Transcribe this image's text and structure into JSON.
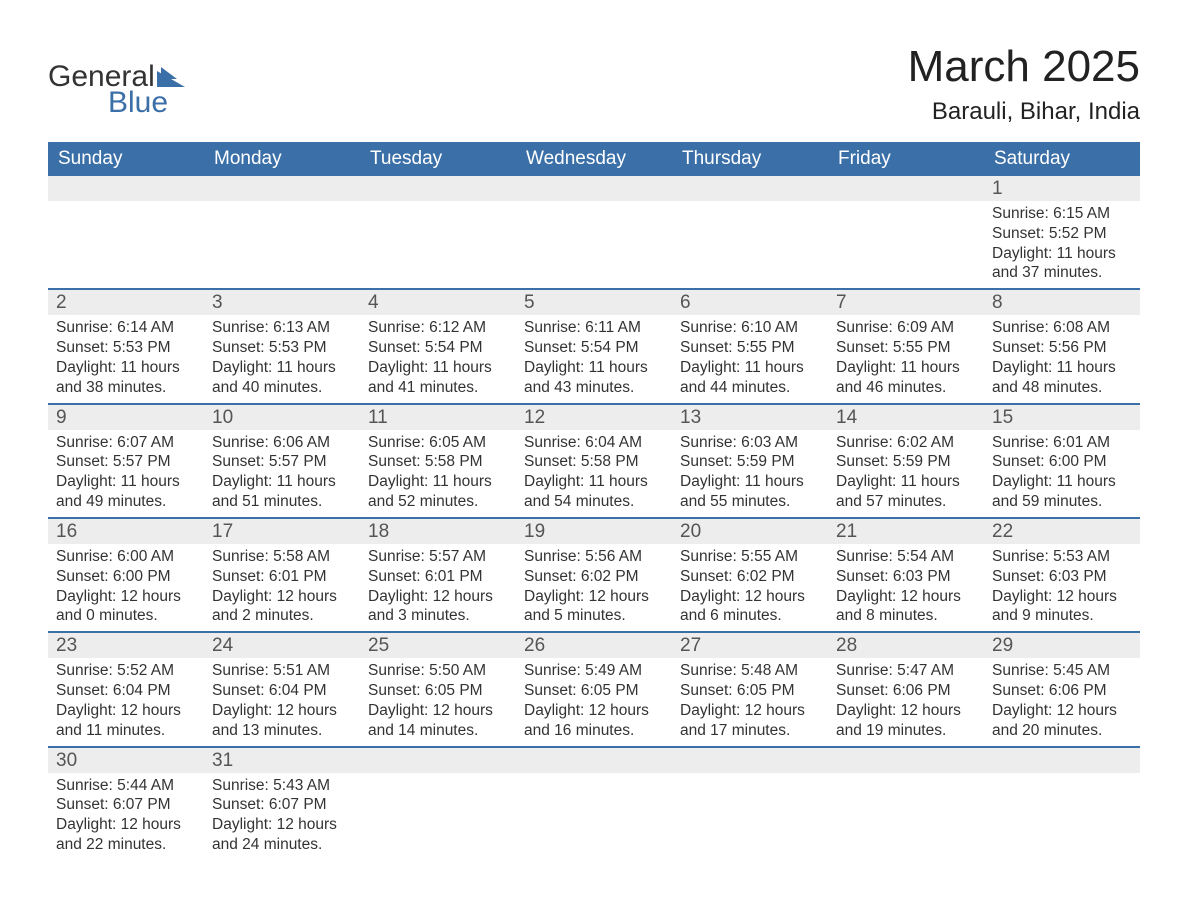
{
  "brand": {
    "general": "General",
    "blue": "Blue"
  },
  "header": {
    "month_title": "March 2025",
    "location": "Barauli, Bihar, India"
  },
  "colors": {
    "header_bg": "#3b6fa8",
    "header_text": "#ffffff",
    "row_divider": "#3b6fa8",
    "daynum_bg": "#ededed",
    "body_bg": "#ffffff",
    "text": "#333333",
    "logo_blue": "#3b6fa8"
  },
  "typography": {
    "month_title_fontsize_pt": 33,
    "location_fontsize_pt": 18,
    "dayheader_fontsize_pt": 14,
    "daynum_fontsize_pt": 14,
    "body_fontsize_pt": 12,
    "font_family": "Arial"
  },
  "calendar": {
    "day_headers": [
      "Sunday",
      "Monday",
      "Tuesday",
      "Wednesday",
      "Thursday",
      "Friday",
      "Saturday"
    ],
    "columns": 7,
    "weeks": [
      [
        null,
        null,
        null,
        null,
        null,
        null,
        {
          "n": "1",
          "sunrise": "6:15 AM",
          "sunset": "5:52 PM",
          "dl": "11 hours and 37 minutes."
        }
      ],
      [
        {
          "n": "2",
          "sunrise": "6:14 AM",
          "sunset": "5:53 PM",
          "dl": "11 hours and 38 minutes."
        },
        {
          "n": "3",
          "sunrise": "6:13 AM",
          "sunset": "5:53 PM",
          "dl": "11 hours and 40 minutes."
        },
        {
          "n": "4",
          "sunrise": "6:12 AM",
          "sunset": "5:54 PM",
          "dl": "11 hours and 41 minutes."
        },
        {
          "n": "5",
          "sunrise": "6:11 AM",
          "sunset": "5:54 PM",
          "dl": "11 hours and 43 minutes."
        },
        {
          "n": "6",
          "sunrise": "6:10 AM",
          "sunset": "5:55 PM",
          "dl": "11 hours and 44 minutes."
        },
        {
          "n": "7",
          "sunrise": "6:09 AM",
          "sunset": "5:55 PM",
          "dl": "11 hours and 46 minutes."
        },
        {
          "n": "8",
          "sunrise": "6:08 AM",
          "sunset": "5:56 PM",
          "dl": "11 hours and 48 minutes."
        }
      ],
      [
        {
          "n": "9",
          "sunrise": "6:07 AM",
          "sunset": "5:57 PM",
          "dl": "11 hours and 49 minutes."
        },
        {
          "n": "10",
          "sunrise": "6:06 AM",
          "sunset": "5:57 PM",
          "dl": "11 hours and 51 minutes."
        },
        {
          "n": "11",
          "sunrise": "6:05 AM",
          "sunset": "5:58 PM",
          "dl": "11 hours and 52 minutes."
        },
        {
          "n": "12",
          "sunrise": "6:04 AM",
          "sunset": "5:58 PM",
          "dl": "11 hours and 54 minutes."
        },
        {
          "n": "13",
          "sunrise": "6:03 AM",
          "sunset": "5:59 PM",
          "dl": "11 hours and 55 minutes."
        },
        {
          "n": "14",
          "sunrise": "6:02 AM",
          "sunset": "5:59 PM",
          "dl": "11 hours and 57 minutes."
        },
        {
          "n": "15",
          "sunrise": "6:01 AM",
          "sunset": "6:00 PM",
          "dl": "11 hours and 59 minutes."
        }
      ],
      [
        {
          "n": "16",
          "sunrise": "6:00 AM",
          "sunset": "6:00 PM",
          "dl": "12 hours and 0 minutes."
        },
        {
          "n": "17",
          "sunrise": "5:58 AM",
          "sunset": "6:01 PM",
          "dl": "12 hours and 2 minutes."
        },
        {
          "n": "18",
          "sunrise": "5:57 AM",
          "sunset": "6:01 PM",
          "dl": "12 hours and 3 minutes."
        },
        {
          "n": "19",
          "sunrise": "5:56 AM",
          "sunset": "6:02 PM",
          "dl": "12 hours and 5 minutes."
        },
        {
          "n": "20",
          "sunrise": "5:55 AM",
          "sunset": "6:02 PM",
          "dl": "12 hours and 6 minutes."
        },
        {
          "n": "21",
          "sunrise": "5:54 AM",
          "sunset": "6:03 PM",
          "dl": "12 hours and 8 minutes."
        },
        {
          "n": "22",
          "sunrise": "5:53 AM",
          "sunset": "6:03 PM",
          "dl": "12 hours and 9 minutes."
        }
      ],
      [
        {
          "n": "23",
          "sunrise": "5:52 AM",
          "sunset": "6:04 PM",
          "dl": "12 hours and 11 minutes."
        },
        {
          "n": "24",
          "sunrise": "5:51 AM",
          "sunset": "6:04 PM",
          "dl": "12 hours and 13 minutes."
        },
        {
          "n": "25",
          "sunrise": "5:50 AM",
          "sunset": "6:05 PM",
          "dl": "12 hours and 14 minutes."
        },
        {
          "n": "26",
          "sunrise": "5:49 AM",
          "sunset": "6:05 PM",
          "dl": "12 hours and 16 minutes."
        },
        {
          "n": "27",
          "sunrise": "5:48 AM",
          "sunset": "6:05 PM",
          "dl": "12 hours and 17 minutes."
        },
        {
          "n": "28",
          "sunrise": "5:47 AM",
          "sunset": "6:06 PM",
          "dl": "12 hours and 19 minutes."
        },
        {
          "n": "29",
          "sunrise": "5:45 AM",
          "sunset": "6:06 PM",
          "dl": "12 hours and 20 minutes."
        }
      ],
      [
        {
          "n": "30",
          "sunrise": "5:44 AM",
          "sunset": "6:07 PM",
          "dl": "12 hours and 22 minutes."
        },
        {
          "n": "31",
          "sunrise": "5:43 AM",
          "sunset": "6:07 PM",
          "dl": "12 hours and 24 minutes."
        },
        null,
        null,
        null,
        null,
        null
      ]
    ],
    "labels": {
      "sunrise": "Sunrise: ",
      "sunset": "Sunset: ",
      "daylight": "Daylight: "
    }
  }
}
